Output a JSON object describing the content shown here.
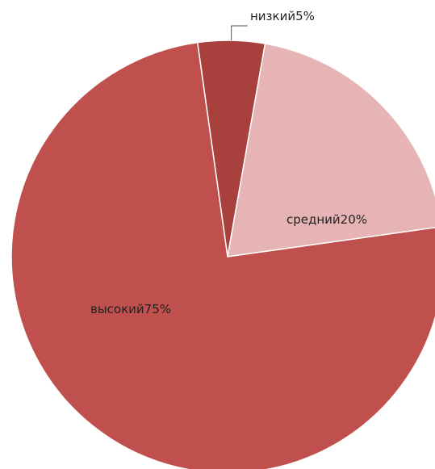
{
  "chart_data": {
    "type": "pie",
    "categories": [
      "низкий",
      "средний",
      "высокий"
    ],
    "values": [
      5,
      20,
      75
    ],
    "value_labels": [
      "5%",
      "20%",
      "75%"
    ],
    "colors": [
      "#a8403e",
      "#e6b4b4",
      "#c0504d"
    ]
  }
}
